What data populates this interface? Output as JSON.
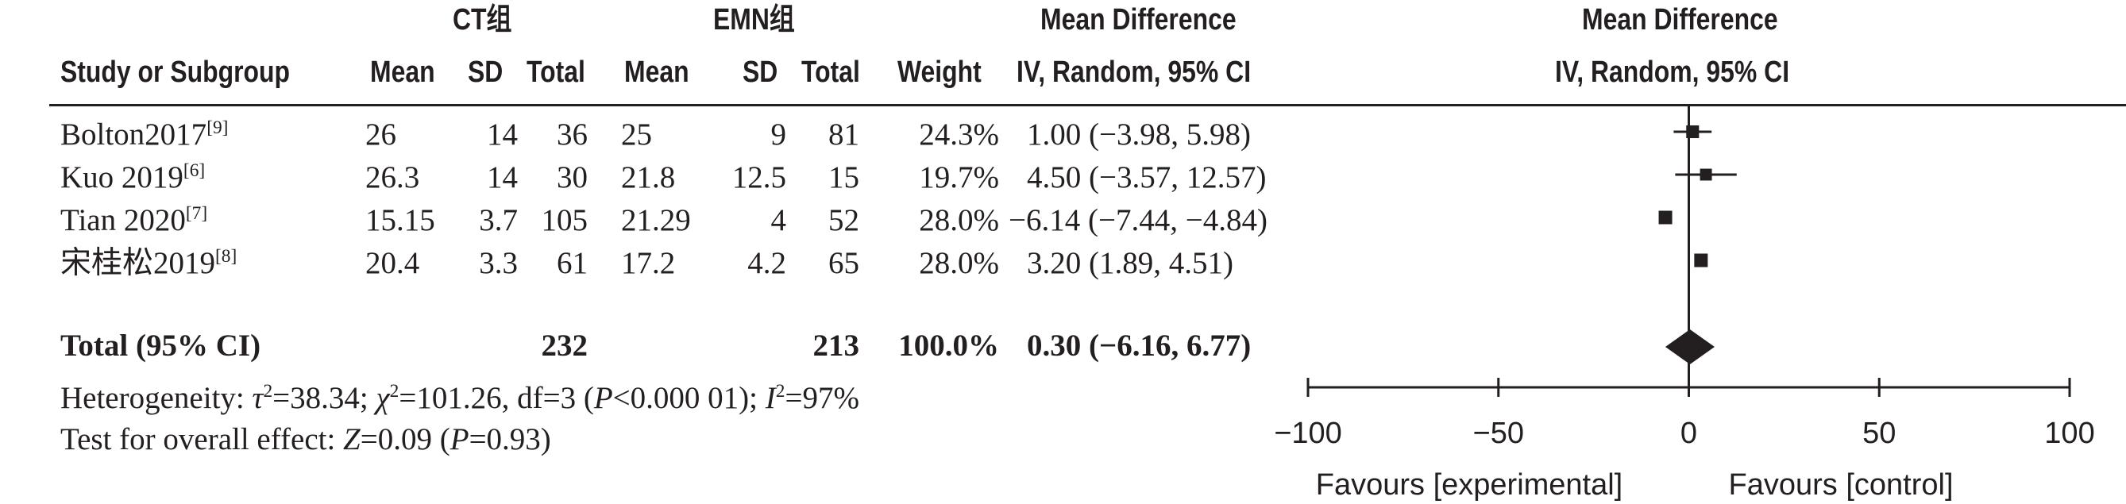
{
  "chart_data": {
    "type": "forest",
    "headers": {
      "group1": "CT组",
      "group2": "EMN组",
      "md_table": "Mean Difference",
      "md_table_sub": "IV, Random, 95% CI",
      "md_plot": "Mean Difference",
      "md_plot_sub": "IV, Random, 95% CI",
      "study": "Study or Subgroup",
      "mean": "Mean",
      "sd": "SD",
      "total": "Total",
      "weight": "Weight"
    },
    "studies": [
      {
        "name": "Bolton2017",
        "ref": "[9]",
        "ct_mean": "26",
        "ct_sd": "14",
        "ct_total": "36",
        "emn_mean": "25",
        "emn_sd": "9",
        "emn_total": "81",
        "weight": "24.3%",
        "ci_text": "1.00 (−3.98, 5.98)",
        "md": 1.0,
        "lo": -3.98,
        "hi": 5.98,
        "w": 24.3
      },
      {
        "name": "Kuo 2019",
        "ref": "[6]",
        "ct_mean": "26.3",
        "ct_sd": "14",
        "ct_total": "30",
        "emn_mean": "21.8",
        "emn_sd": "12.5",
        "emn_total": "15",
        "weight": "19.7%",
        "ci_text": "4.50 (−3.57, 12.57)",
        "md": 4.5,
        "lo": -3.57,
        "hi": 12.57,
        "w": 19.7
      },
      {
        "name": "Tian 2020",
        "ref": "[7]",
        "ct_mean": "15.15",
        "ct_sd": "3.7",
        "ct_total": "105",
        "emn_mean": "21.29",
        "emn_sd": "4",
        "emn_total": "52",
        "weight": "28.0%",
        "ci_text": "−6.14 (−7.44, −4.84)",
        "md": -6.14,
        "lo": -7.44,
        "hi": -4.84,
        "w": 28.0
      },
      {
        "name": "宋桂松2019",
        "ref": "[8]",
        "ct_mean": "20.4",
        "ct_sd": "3.3",
        "ct_total": "61",
        "emn_mean": "17.2",
        "emn_sd": "4.2",
        "emn_total": "65",
        "weight": "28.0%",
        "ci_text": "3.20 (1.89, 4.51)",
        "md": 3.2,
        "lo": 1.89,
        "hi": 4.51,
        "w": 28.0
      }
    ],
    "total": {
      "label": "Total (95% CI)",
      "ct_total": "232",
      "emn_total": "213",
      "weight": "100.0%",
      "ci_text": "0.30 (−6.16, 6.77)",
      "md": 0.3,
      "lo": -6.16,
      "hi": 6.77
    },
    "heterogeneity": {
      "label": "Heterogeneity: ",
      "tau": "τ",
      "tau_sup": "2",
      "tau_val": "=38.34; ",
      "chi": "χ",
      "chi_sup": "2",
      "chi_val": "=101.26, df=3 (",
      "p": "P",
      "p_val": "<0.000 01); ",
      "i": "I",
      "i_sup": "2",
      "i_val": "=97%"
    },
    "overall": {
      "label": "Test for overall effect: ",
      "z": "Z",
      "z_val": "=0.09 (",
      "p": "P",
      "p_val": "=0.93)"
    },
    "xaxis": {
      "ticks": [
        -100,
        -50,
        0,
        50,
        100
      ],
      "tick_labels": [
        "−100",
        "−50",
        "0",
        "50",
        "100"
      ],
      "xlim": [
        -100,
        100
      ]
    },
    "favours_left": "Favours [experimental]",
    "favours_right": "Favours [control]"
  }
}
